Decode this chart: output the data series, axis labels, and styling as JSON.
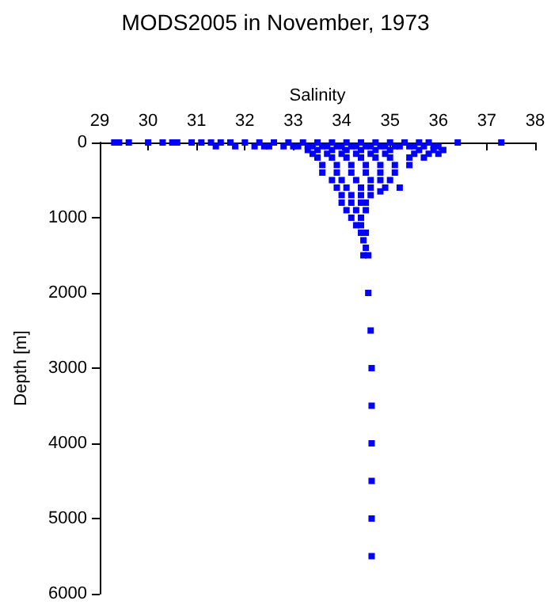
{
  "chart_data": {
    "type": "scatter",
    "title": "MODS2005 in November, 1973",
    "xlabel": "Salinity",
    "ylabel": "Depth [m]",
    "xlim": [
      29,
      38
    ],
    "xticks": [
      29,
      30,
      31,
      32,
      33,
      34,
      35,
      36,
      37,
      38
    ],
    "ylim": [
      6000,
      0
    ],
    "yticks": [
      0,
      1000,
      2000,
      3000,
      4000,
      5000,
      6000
    ],
    "grid": false,
    "marker": "square",
    "series": [
      {
        "color": "#0000ff",
        "x": [
          29.3,
          29.4,
          29.6,
          30.0,
          30.3,
          30.5,
          30.6,
          30.9,
          31.1,
          31.3,
          31.5,
          31.7,
          32.0,
          32.3,
          32.6,
          32.9,
          33.2,
          33.5,
          33.8,
          34.1,
          34.4,
          34.7,
          35.0,
          35.3,
          35.6,
          35.8,
          36.4,
          37.3,
          31.4,
          31.8,
          32.2,
          32.5,
          32.8,
          33.1,
          33.4,
          33.7,
          34.0,
          34.3,
          34.6,
          34.9,
          35.2,
          35.5,
          35.9,
          32.4,
          33.0,
          33.3,
          33.6,
          33.9,
          34.2,
          34.5,
          34.8,
          35.1,
          35.4,
          35.7,
          36.0,
          33.3,
          33.5,
          33.8,
          34.1,
          34.4,
          34.7,
          35.0,
          35.6,
          35.9,
          36.1,
          33.4,
          33.7,
          34.0,
          34.3,
          34.6,
          34.9,
          35.5,
          35.8,
          36.0,
          33.5,
          33.8,
          34.1,
          34.4,
          34.7,
          35.0,
          35.4,
          35.7,
          33.6,
          33.9,
          34.2,
          34.5,
          34.8,
          35.1,
          35.4,
          33.6,
          33.9,
          34.2,
          34.5,
          34.8,
          35.1,
          33.8,
          34.0,
          34.3,
          34.6,
          34.8,
          35.0,
          33.9,
          34.1,
          34.4,
          34.6,
          34.9,
          35.2,
          34.8,
          34.0,
          34.2,
          34.4,
          34.6,
          34.0,
          34.2,
          34.4,
          34.5,
          34.1,
          34.3,
          34.5,
          34.2,
          34.4,
          34.3,
          34.4,
          34.4,
          34.5,
          34.45,
          34.5,
          34.45,
          34.55,
          34.55,
          34.6,
          34.62,
          34.62,
          34.62,
          34.62,
          34.62,
          34.62
        ],
        "values": [
          0,
          0,
          0,
          0,
          0,
          0,
          0,
          0,
          0,
          0,
          0,
          0,
          0,
          0,
          0,
          0,
          0,
          0,
          0,
          0,
          0,
          0,
          0,
          0,
          0,
          0,
          0,
          0,
          50,
          50,
          50,
          50,
          50,
          50,
          50,
          50,
          50,
          50,
          50,
          50,
          50,
          50,
          50,
          50,
          50,
          50,
          50,
          50,
          50,
          50,
          50,
          50,
          50,
          50,
          50,
          100,
          100,
          100,
          100,
          100,
          100,
          100,
          100,
          100,
          100,
          150,
          150,
          150,
          150,
          150,
          150,
          150,
          150,
          150,
          200,
          200,
          200,
          200,
          200,
          200,
          200,
          200,
          300,
          300,
          300,
          300,
          300,
          300,
          300,
          400,
          400,
          400,
          400,
          400,
          400,
          500,
          500,
          500,
          500,
          500,
          500,
          600,
          600,
          600,
          600,
          600,
          600,
          650,
          700,
          700,
          700,
          700,
          800,
          800,
          800,
          800,
          900,
          900,
          900,
          1000,
          1000,
          1100,
          1100,
          1200,
          1200,
          1300,
          1400,
          1500,
          1500,
          2000,
          2500,
          3000,
          3500,
          4000,
          4500,
          5000,
          5500
        ]
      }
    ]
  }
}
